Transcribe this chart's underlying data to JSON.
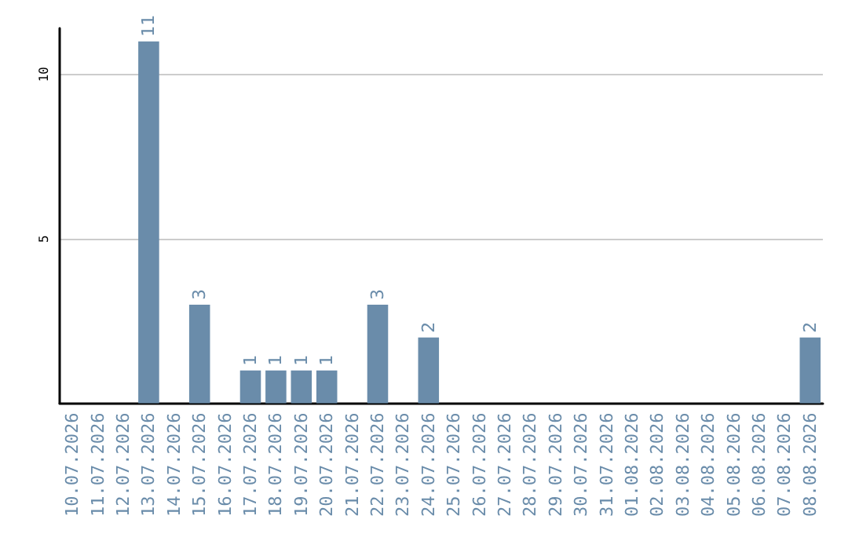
{
  "chart_data": {
    "type": "bar",
    "categories": [
      "10.07.2026",
      "11.07.2026",
      "12.07.2026",
      "13.07.2026",
      "14.07.2026",
      "15.07.2026",
      "16.07.2026",
      "17.07.2026",
      "18.07.2026",
      "19.07.2026",
      "20.07.2026",
      "21.07.2026",
      "22.07.2026",
      "23.07.2026",
      "24.07.2026",
      "25.07.2026",
      "26.07.2026",
      "27.07.2026",
      "28.07.2026",
      "29.07.2026",
      "30.07.2026",
      "31.07.2026",
      "01.08.2026",
      "02.08.2026",
      "03.08.2026",
      "04.08.2026",
      "05.08.2026",
      "06.08.2026",
      "07.08.2026",
      "08.08.2026"
    ],
    "values": [
      0,
      0,
      0,
      11,
      0,
      3,
      0,
      1,
      1,
      1,
      1,
      0,
      3,
      0,
      2,
      0,
      0,
      0,
      0,
      0,
      0,
      0,
      0,
      0,
      0,
      0,
      0,
      0,
      0,
      2
    ],
    "value_labels": [
      null,
      null,
      null,
      "11",
      null,
      "3",
      null,
      "1",
      "1",
      "1",
      "1",
      null,
      "3",
      null,
      "2",
      null,
      null,
      null,
      null,
      null,
      null,
      null,
      null,
      null,
      null,
      null,
      null,
      null,
      null,
      "2"
    ],
    "color": "#6a8caa",
    "ylim": [
      0,
      11.4
    ],
    "yticks": [
      5,
      10
    ],
    "grid": "y"
  }
}
